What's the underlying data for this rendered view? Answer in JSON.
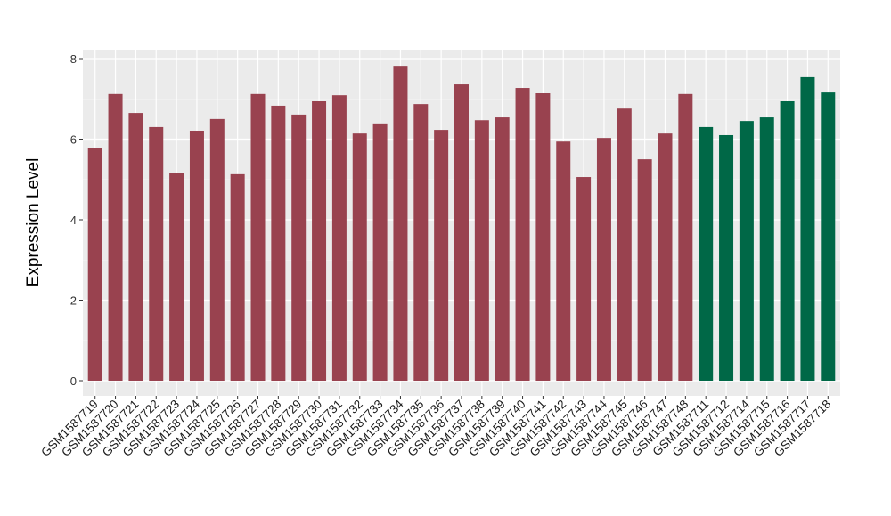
{
  "chart_data": {
    "type": "bar",
    "title": "",
    "xlabel": "",
    "ylabel": "Expression Level",
    "ylim": [
      0,
      8
    ],
    "yticks": [
      0,
      2,
      4,
      6,
      8
    ],
    "grid": true,
    "legend": "none",
    "colors": {
      "group1": "#99424F",
      "group2": "#006847",
      "panel": "#EBEBEB",
      "grid": "#FFFFFF"
    },
    "categories": [
      "GSM1587719",
      "GSM1587720",
      "GSM1587721",
      "GSM1587722",
      "GSM1587723",
      "GSM1587724",
      "GSM1587725",
      "GSM1587726",
      "GSM1587727",
      "GSM1587728",
      "GSM1587729",
      "GSM1587730",
      "GSM1587731",
      "GSM1587732",
      "GSM1587733",
      "GSM1587734",
      "GSM1587735",
      "GSM1587736",
      "GSM1587737",
      "GSM1587738",
      "GSM1587739",
      "GSM1587740",
      "GSM1587741",
      "GSM1587742",
      "GSM1587743",
      "GSM1587744",
      "GSM1587745",
      "GSM1587746",
      "GSM1587747",
      "GSM1587748",
      "GSM1587711",
      "GSM1587712",
      "GSM1587714",
      "GSM1587715",
      "GSM1587716",
      "GSM1587717",
      "GSM1587718"
    ],
    "values": [
      5.79,
      7.12,
      6.65,
      6.3,
      5.15,
      6.21,
      6.5,
      5.13,
      7.12,
      6.83,
      6.61,
      6.94,
      7.09,
      6.14,
      6.39,
      7.82,
      6.87,
      6.23,
      7.38,
      6.47,
      6.54,
      7.27,
      7.16,
      5.94,
      5.06,
      6.03,
      6.78,
      5.5,
      6.14,
      7.12,
      6.3,
      6.1,
      6.45,
      6.54,
      6.94,
      7.56,
      7.18
    ],
    "groups": [
      1,
      1,
      1,
      1,
      1,
      1,
      1,
      1,
      1,
      1,
      1,
      1,
      1,
      1,
      1,
      1,
      1,
      1,
      1,
      1,
      1,
      1,
      1,
      1,
      1,
      1,
      1,
      1,
      1,
      1,
      2,
      2,
      2,
      2,
      2,
      2,
      2
    ]
  }
}
